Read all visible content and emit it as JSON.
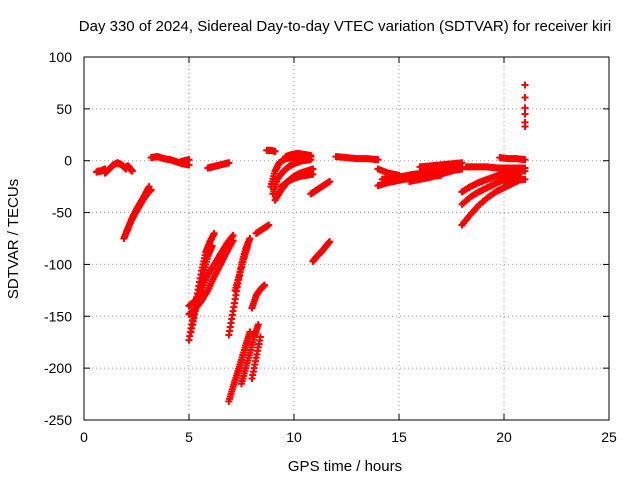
{
  "chart_data": {
    "type": "scatter",
    "title": "Day 330 of 2024, Sidereal Day-to-day VTEC variation (SDTVAR) for receiver kiri",
    "xlabel": "GPS time / hours",
    "ylabel": "SDTVAR / TECUs",
    "xlim": [
      0,
      25
    ],
    "ylim": [
      -250,
      100
    ],
    "xticks": [
      "0",
      "5",
      "10",
      "15",
      "20",
      "25"
    ],
    "yticks": [
      "100",
      "50",
      "0",
      "-50",
      "-100",
      "-150",
      "-200",
      "-250"
    ],
    "grid": true,
    "marker": "plus",
    "color": "#ff0000",
    "series": [
      {
        "x": [
          0.6,
          0.7,
          0.8,
          0.9,
          1.0
        ],
        "y": [
          -11,
          -10,
          -10,
          -9,
          -8
        ]
      },
      {
        "x": [
          1.0,
          1.2,
          1.4,
          1.6,
          1.8,
          2.0
        ],
        "y": [
          -12,
          -8,
          -4,
          -2,
          -4,
          -8
        ]
      },
      {
        "x": [
          2.0,
          2.1,
          2.2,
          2.3
        ],
        "y": [
          -6,
          -5,
          -8,
          -10
        ]
      },
      {
        "x": [
          1.9,
          2.1,
          2.3,
          2.5,
          2.7,
          2.9,
          3.1
        ],
        "y": [
          -75,
          -65,
          -55,
          -47,
          -40,
          -33,
          -25
        ]
      },
      {
        "x": [
          2.0,
          2.2,
          2.4,
          2.6,
          2.8,
          3.0,
          3.2
        ],
        "y": [
          -70,
          -60,
          -52,
          -45,
          -38,
          -32,
          -28
        ]
      },
      {
        "x": [
          3.2,
          3.5,
          3.8,
          4.1,
          4.4,
          4.7,
          5.0
        ],
        "y": [
          3,
          4,
          2,
          1,
          -1,
          -3,
          -4
        ]
      },
      {
        "x": [
          4.6,
          4.8,
          5.0
        ],
        "y": [
          -1,
          0,
          1
        ]
      },
      {
        "x": [
          5.0,
          5.2,
          5.4,
          5.6,
          5.8,
          6.0,
          6.2
        ],
        "y": [
          -173,
          -150,
          -128,
          -106,
          -88,
          -78,
          -70
        ]
      },
      {
        "x": [
          5.1,
          5.3,
          5.5,
          5.7,
          5.9,
          6.1
        ],
        "y": [
          -165,
          -145,
          -125,
          -108,
          -92,
          -82
        ]
      },
      {
        "x": [
          5.0,
          5.3,
          5.6,
          5.9,
          6.2,
          6.5,
          6.8,
          7.1
        ],
        "y": [
          -140,
          -135,
          -125,
          -110,
          -100,
          -90,
          -80,
          -72
        ]
      },
      {
        "x": [
          5.0,
          5.3,
          5.6,
          5.9,
          6.2,
          6.5,
          6.8,
          7.1
        ],
        "y": [
          -148,
          -143,
          -135,
          -125,
          -112,
          -100,
          -88,
          -77
        ]
      },
      {
        "x": [
          5.9,
          6.1,
          6.3,
          6.5,
          6.7,
          6.9
        ],
        "y": [
          -7,
          -6,
          -5,
          -4,
          -3,
          -2
        ]
      },
      {
        "x": [
          6.9,
          7.1,
          7.3,
          7.5,
          7.7,
          7.9
        ],
        "y": [
          -168,
          -145,
          -122,
          -100,
          -85,
          -75
        ]
      },
      {
        "x": [
          7.2,
          7.4,
          7.6,
          7.8
        ],
        "y": [
          -125,
          -110,
          -95,
          -82
        ]
      },
      {
        "x": [
          6.9,
          7.1,
          7.3,
          7.5,
          7.7,
          7.9
        ],
        "y": [
          -232,
          -218,
          -205,
          -192,
          -178,
          -165
        ]
      },
      {
        "x": [
          7.5,
          7.7,
          7.9,
          8.1,
          8.3
        ],
        "y": [
          -215,
          -200,
          -185,
          -170,
          -158
        ]
      },
      {
        "x": [
          8.0,
          8.2,
          8.4
        ],
        "y": [
          -210,
          -190,
          -170
        ]
      },
      {
        "x": [
          8.0,
          8.2,
          8.4,
          8.6
        ],
        "y": [
          -142,
          -130,
          -124,
          -120
        ]
      },
      {
        "x": [
          8.2,
          8.5,
          8.8
        ],
        "y": [
          -70,
          -66,
          -62
        ]
      },
      {
        "x": [
          8.7,
          8.9,
          9.1
        ],
        "y": [
          10,
          10,
          9
        ]
      },
      {
        "x": [
          8.9,
          9.1,
          9.3,
          9.6,
          9.9,
          10.2,
          10.5,
          10.8
        ],
        "y": [
          -25,
          -10,
          -2,
          2,
          3,
          3,
          4,
          4
        ]
      },
      {
        "x": [
          9.0,
          9.2,
          9.5,
          9.8,
          10.1,
          10.4,
          10.8
        ],
        "y": [
          -32,
          -18,
          -10,
          -5,
          -2,
          0,
          1
        ]
      },
      {
        "x": [
          9.1,
          9.4,
          9.7,
          10.0,
          10.3,
          10.6,
          10.9
        ],
        "y": [
          -38,
          -28,
          -20,
          -15,
          -12,
          -10,
          -8
        ]
      },
      {
        "x": [
          9.4,
          9.7,
          10.0,
          10.3,
          10.6,
          10.9
        ],
        "y": [
          -25,
          -20,
          -17,
          -15,
          -14,
          -13
        ]
      },
      {
        "x": [
          9.6,
          9.9,
          10.2,
          10.5,
          10.8
        ],
        "y": [
          4,
          6,
          7,
          6,
          5
        ]
      },
      {
        "x": [
          10.8,
          11.1,
          11.4,
          11.7
        ],
        "y": [
          -32,
          -28,
          -24,
          -20
        ]
      },
      {
        "x": [
          10.9,
          11.1,
          11.3,
          11.5,
          11.7
        ],
        "y": [
          -97,
          -92,
          -88,
          -83,
          -78
        ]
      },
      {
        "x": [
          12.0,
          12.5,
          13.0,
          13.5,
          14.0
        ],
        "y": [
          4,
          3,
          2,
          2,
          1
        ]
      },
      {
        "x": [
          14.0,
          14.5,
          15.0,
          15.5,
          16.0,
          16.5,
          17.0
        ],
        "y": [
          -24,
          -21,
          -19,
          -17,
          -16,
          -15,
          -14
        ]
      },
      {
        "x": [
          14.2,
          14.7,
          15.2,
          15.7,
          16.2,
          16.7,
          17.2,
          17.7,
          18.0
        ],
        "y": [
          -18,
          -16,
          -15,
          -13,
          -12,
          -11,
          -10,
          -9,
          -8
        ]
      },
      {
        "x": [
          14.0,
          14.5,
          15.0
        ],
        "y": [
          -8,
          -12,
          -14
        ]
      },
      {
        "x": [
          16.0,
          16.5,
          17.0,
          17.5,
          18.0
        ],
        "y": [
          -6,
          -5,
          -4,
          -3,
          -2
        ]
      },
      {
        "x": [
          15.5,
          16.0,
          16.5,
          17.0,
          17.5,
          18.0
        ],
        "y": [
          -20,
          -18,
          -16,
          -13,
          -10,
          -6
        ]
      },
      {
        "x": [
          18.0,
          18.4,
          18.8,
          19.2,
          19.6,
          20.0,
          20.4,
          20.8
        ],
        "y": [
          -62,
          -52,
          -43,
          -36,
          -30,
          -26,
          -22,
          -18
        ]
      },
      {
        "x": [
          18.0,
          18.4,
          18.8,
          19.2,
          19.6,
          20.0,
          20.4,
          20.8
        ],
        "y": [
          -42,
          -35,
          -30,
          -26,
          -22,
          -18,
          -15,
          -12
        ]
      },
      {
        "x": [
          18.0,
          18.4,
          18.8,
          19.2,
          19.6,
          20.0,
          20.4,
          20.8
        ],
        "y": [
          -30,
          -25,
          -21,
          -18,
          -15,
          -12,
          -10,
          -8
        ]
      },
      {
        "x": [
          18.2,
          18.7,
          19.2,
          19.7,
          20.2,
          20.7,
          21.0
        ],
        "y": [
          -6,
          -6,
          -6,
          -7,
          -7,
          -7,
          -7
        ]
      },
      {
        "x": [
          19.8,
          20.2,
          20.6,
          21.0
        ],
        "y": [
          3,
          2,
          2,
          1
        ]
      },
      {
        "x": [
          20.0,
          20.5,
          21.0
        ],
        "y": [
          -20,
          -19,
          -18
        ]
      },
      {
        "x": [
          21.0,
          21.0,
          21.0,
          21.0,
          21.0,
          21.0,
          21.0
        ],
        "y": [
          73,
          61,
          51,
          45,
          37,
          33,
          -10
        ]
      }
    ]
  }
}
